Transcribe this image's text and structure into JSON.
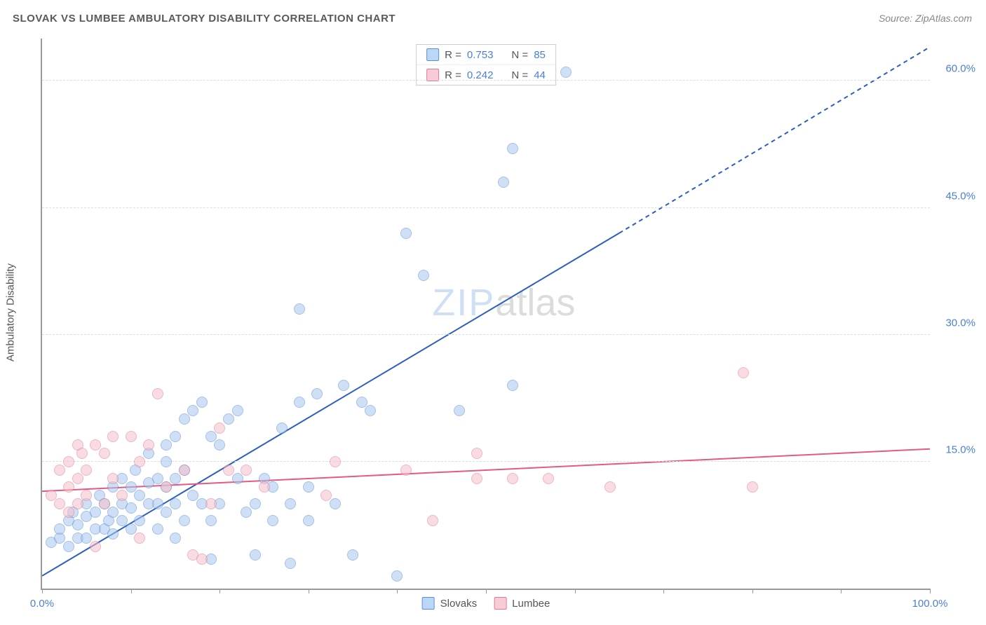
{
  "title": "SLOVAK VS LUMBEE AMBULATORY DISABILITY CORRELATION CHART",
  "source": "Source: ZipAtlas.com",
  "watermark": {
    "zip": "ZIP",
    "atlas": "atlas"
  },
  "chart": {
    "type": "scatter",
    "y_axis_label": "Ambulatory Disability",
    "xlim": [
      0,
      100
    ],
    "ylim": [
      0,
      65
    ],
    "x_ticks": [
      0,
      10,
      20,
      30,
      40,
      50,
      60,
      70,
      80,
      90,
      100
    ],
    "x_tick_labels": {
      "0": "0.0%",
      "100": "100.0%"
    },
    "y_gridlines": [
      15,
      30,
      45,
      60
    ],
    "y_tick_labels": {
      "15": "15.0%",
      "30": "30.0%",
      "45": "45.0%",
      "60": "60.0%"
    },
    "grid_color": "#dddddd",
    "axis_color": "#999999",
    "background_color": "#ffffff",
    "tick_label_color": "#4a7fd8",
    "axis_label_color": "#555555",
    "series": [
      {
        "name": "Slovaks",
        "color_fill": "#a8c8f0",
        "color_stroke": "#5b8fd6",
        "marker_radius": 8,
        "R": "0.753",
        "N": "85",
        "trend": {
          "x1": 0,
          "y1": 1.5,
          "x2": 65,
          "y2": 42,
          "dash_from_x": 65,
          "dash_to_x": 100,
          "dash_to_y": 64,
          "color": "#2a5fbf",
          "width": 2
        },
        "points": [
          [
            1,
            5.5
          ],
          [
            2,
            6
          ],
          [
            2,
            7
          ],
          [
            3,
            5
          ],
          [
            3,
            8
          ],
          [
            3.5,
            9
          ],
          [
            4,
            6
          ],
          [
            4,
            7.5
          ],
          [
            5,
            6
          ],
          [
            5,
            8.5
          ],
          [
            5,
            10
          ],
          [
            6,
            7
          ],
          [
            6,
            9
          ],
          [
            6.5,
            11
          ],
          [
            7,
            7
          ],
          [
            7,
            10
          ],
          [
            7.5,
            8
          ],
          [
            8,
            6.5
          ],
          [
            8,
            9
          ],
          [
            8,
            12
          ],
          [
            9,
            8
          ],
          [
            9,
            10
          ],
          [
            9,
            13
          ],
          [
            10,
            7
          ],
          [
            10,
            9.5
          ],
          [
            10,
            12
          ],
          [
            10.5,
            14
          ],
          [
            11,
            8
          ],
          [
            11,
            11
          ],
          [
            12,
            10
          ],
          [
            12,
            12.5
          ],
          [
            12,
            16
          ],
          [
            13,
            7
          ],
          [
            13,
            10
          ],
          [
            13,
            13
          ],
          [
            14,
            9
          ],
          [
            14,
            12
          ],
          [
            14,
            15
          ],
          [
            14,
            17
          ],
          [
            15,
            6
          ],
          [
            15,
            10
          ],
          [
            15,
            13
          ],
          [
            15,
            18
          ],
          [
            16,
            8
          ],
          [
            16,
            14
          ],
          [
            16,
            20
          ],
          [
            17,
            11
          ],
          [
            17,
            21
          ],
          [
            18,
            10
          ],
          [
            18,
            22
          ],
          [
            19,
            3.5
          ],
          [
            19,
            8
          ],
          [
            19,
            18
          ],
          [
            20,
            10
          ],
          [
            20,
            17
          ],
          [
            21,
            20
          ],
          [
            22,
            13
          ],
          [
            22,
            21
          ],
          [
            23,
            9
          ],
          [
            24,
            4
          ],
          [
            24,
            10
          ],
          [
            25,
            13
          ],
          [
            26,
            8
          ],
          [
            26,
            12
          ],
          [
            27,
            19
          ],
          [
            28,
            3
          ],
          [
            28,
            10
          ],
          [
            29,
            22
          ],
          [
            29,
            33
          ],
          [
            30,
            8
          ],
          [
            30,
            12
          ],
          [
            31,
            23
          ],
          [
            33,
            10
          ],
          [
            34,
            24
          ],
          [
            35,
            4
          ],
          [
            36,
            22
          ],
          [
            37,
            21
          ],
          [
            40,
            1.5
          ],
          [
            41,
            42
          ],
          [
            43,
            37
          ],
          [
            47,
            21
          ],
          [
            52,
            48
          ],
          [
            53,
            52
          ],
          [
            53,
            24
          ],
          [
            59,
            61
          ]
        ]
      },
      {
        "name": "Lumbee",
        "color_fill": "#f5c0cc",
        "color_stroke": "#e37a95",
        "marker_radius": 8,
        "R": "0.242",
        "N": "44",
        "trend": {
          "x1": 0,
          "y1": 11.5,
          "x2": 100,
          "y2": 16.5,
          "color": "#e15b82",
          "width": 2
        },
        "points": [
          [
            1,
            11
          ],
          [
            2,
            10
          ],
          [
            2,
            14
          ],
          [
            3,
            9
          ],
          [
            3,
            12
          ],
          [
            3,
            15
          ],
          [
            4,
            10
          ],
          [
            4,
            13
          ],
          [
            4,
            17
          ],
          [
            4.5,
            16
          ],
          [
            5,
            11
          ],
          [
            5,
            14
          ],
          [
            6,
            5
          ],
          [
            6,
            17
          ],
          [
            7,
            10
          ],
          [
            7,
            16
          ],
          [
            8,
            13
          ],
          [
            8,
            18
          ],
          [
            9,
            11
          ],
          [
            10,
            18
          ],
          [
            11,
            6
          ],
          [
            11,
            15
          ],
          [
            12,
            17
          ],
          [
            13,
            23
          ],
          [
            14,
            12
          ],
          [
            16,
            14
          ],
          [
            17,
            4
          ],
          [
            18,
            3.5
          ],
          [
            19,
            10
          ],
          [
            20,
            19
          ],
          [
            21,
            14
          ],
          [
            23,
            14
          ],
          [
            25,
            12
          ],
          [
            32,
            11
          ],
          [
            33,
            15
          ],
          [
            41,
            14
          ],
          [
            44,
            8
          ],
          [
            49,
            13
          ],
          [
            49,
            16
          ],
          [
            53,
            13
          ],
          [
            57,
            13
          ],
          [
            64,
            12
          ],
          [
            79,
            25.5
          ],
          [
            80,
            12
          ]
        ]
      }
    ],
    "legend_top": {
      "R_label": "R =",
      "N_label": "N ="
    },
    "legend_bottom": [
      {
        "swatch": "blue",
        "label": "Slovaks"
      },
      {
        "swatch": "pink",
        "label": "Lumbee"
      }
    ]
  }
}
